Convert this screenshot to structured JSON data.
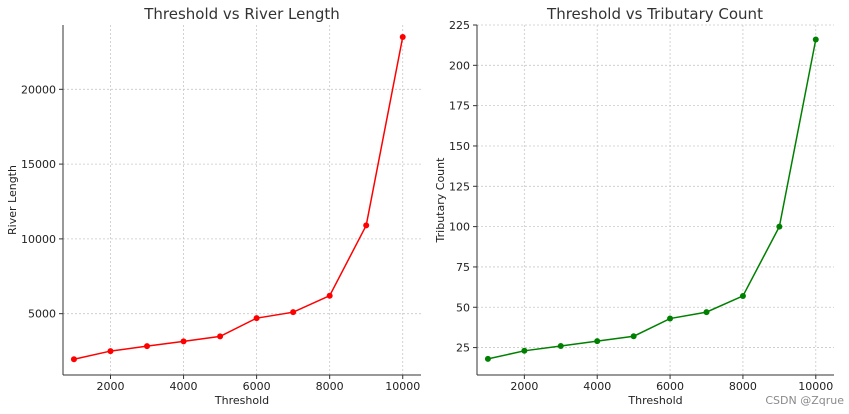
{
  "chart_data": [
    {
      "type": "line",
      "title": "Threshold vs River Length",
      "xlabel": "Threshold",
      "ylabel": "River Length",
      "x": [
        1000,
        2000,
        3000,
        4000,
        5000,
        6000,
        7000,
        8000,
        9000,
        10000
      ],
      "series": [
        {
          "values": [
            1950,
            2500,
            2830,
            3150,
            3480,
            4700,
            5100,
            6200,
            10900,
            23500
          ],
          "color": "#ff0000"
        }
      ],
      "xticks": [
        2000,
        4000,
        6000,
        8000,
        10000
      ],
      "yticks": [
        5000,
        10000,
        15000,
        20000
      ],
      "xlim": [
        700,
        10500
      ],
      "ylim": [
        900,
        24300
      ],
      "grid": true,
      "legend": "none"
    },
    {
      "type": "line",
      "title": "Threshold vs Tributary Count",
      "xlabel": "Threshold",
      "ylabel": "Tributary Count",
      "x": [
        1000,
        2000,
        3000,
        4000,
        5000,
        6000,
        7000,
        8000,
        9000,
        10000
      ],
      "series": [
        {
          "values": [
            18,
            23,
            26,
            29,
            32,
            43,
            47,
            57,
            100,
            216
          ],
          "color": "#008000"
        }
      ],
      "xticks": [
        2000,
        4000,
        6000,
        8000,
        10000
      ],
      "yticks": [
        25,
        50,
        75,
        100,
        125,
        150,
        175,
        200,
        225
      ],
      "xlim": [
        700,
        10500
      ],
      "ylim": [
        8,
        225
      ],
      "grid": true,
      "legend": "none"
    }
  ],
  "watermark": {
    "text": "CSDN @Zqrue"
  }
}
